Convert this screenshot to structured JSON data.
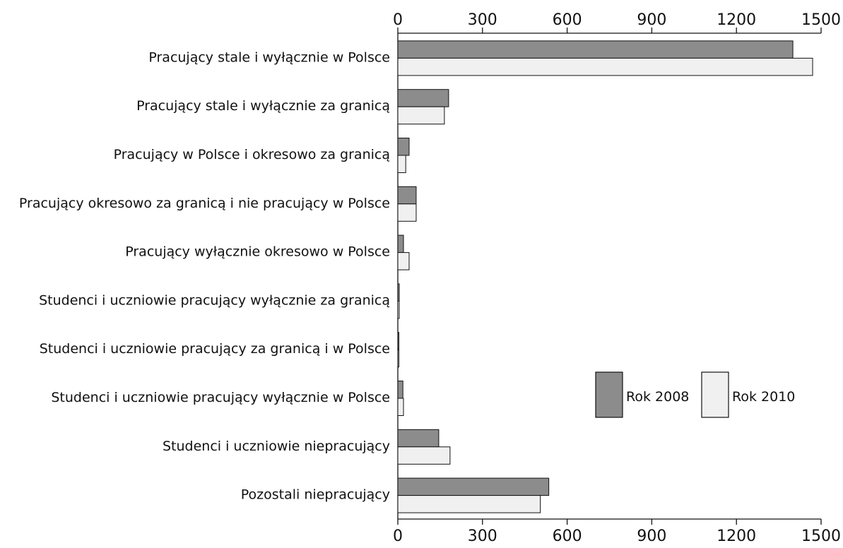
{
  "chart_data": {
    "type": "bar",
    "orientation": "horizontal",
    "categories": [
      "Pracujący stale i wyłącznie w Polsce",
      "Pracujący stale i wyłącznie za granicą",
      "Pracujący w Polsce i okresowo za granicą",
      "Pracujący okresowo za granicą i nie pracujący w Polsce",
      "Pracujący wyłącznie okresowo w Polsce",
      "Studenci i uczniowie pracujący wyłącznie za granicą",
      "Studenci i uczniowie pracujący za granicą i w Polsce",
      "Studenci i uczniowie pracujący wyłącznie w Polsce",
      "Studenci i uczniowie niepracujący",
      "Pozostali niepracujący"
    ],
    "series": [
      {
        "name": "Rok 2008",
        "color": "#8c8c8c",
        "values": [
          1400,
          180,
          40,
          65,
          20,
          5,
          3,
          18,
          145,
          535
        ]
      },
      {
        "name": "Rok 2010",
        "color": "#f0f0f0",
        "values": [
          1470,
          165,
          28,
          65,
          40,
          5,
          3,
          20,
          185,
          505
        ]
      }
    ],
    "xlim": [
      0,
      1500
    ],
    "xticks": [
      "0",
      "300",
      "600",
      "900",
      "1200",
      "1500"
    ],
    "axis_position": [
      "top",
      "bottom"
    ],
    "grid": false,
    "legend_position": "lower-right"
  }
}
